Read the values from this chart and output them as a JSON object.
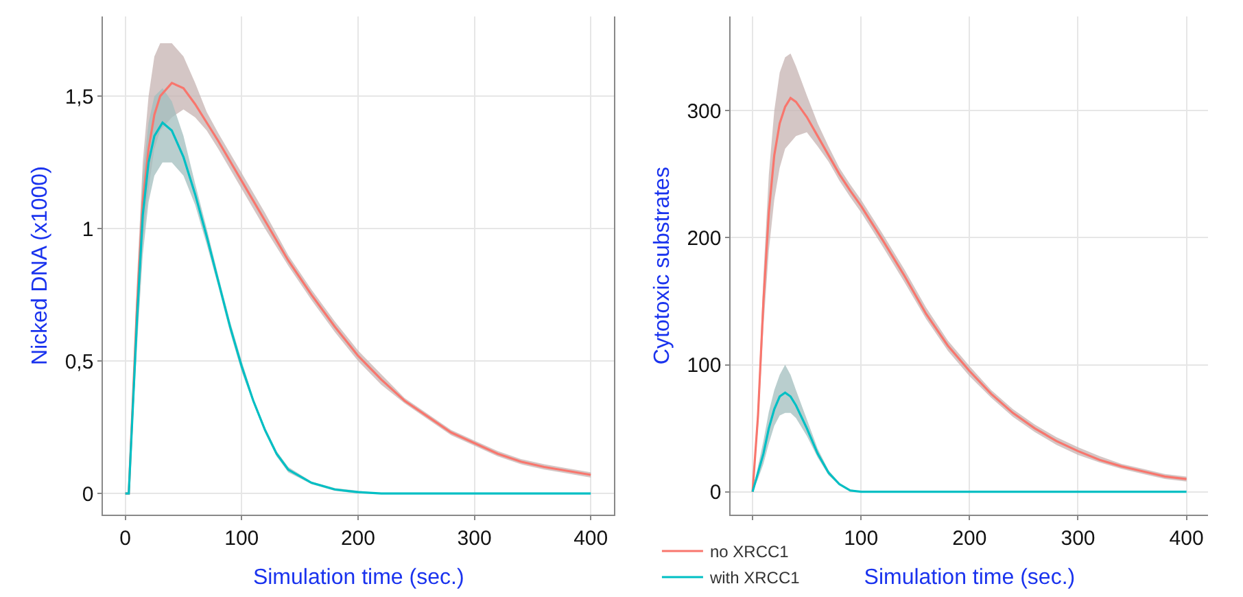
{
  "chart_data": [
    {
      "type": "line",
      "xlabel": "Simulation time (sec.)",
      "ylabel": "Nicked DNA (x1000)",
      "xlim": [
        -19,
        420
      ],
      "ylim": [
        -0.08,
        1.8
      ],
      "xticks": [
        0,
        100,
        200,
        300,
        400
      ],
      "yticks": [
        0,
        {
          "value": 0.5,
          "label": "0,5"
        },
        1,
        {
          "value": 1.5,
          "label": "1,5"
        }
      ],
      "grid": true,
      "legend": false,
      "series": [
        {
          "color": "#f8766d",
          "x": [
            0,
            3,
            10,
            15,
            20,
            25,
            30,
            40,
            50,
            60,
            70,
            80,
            100,
            120,
            140,
            160,
            180,
            200,
            220,
            240,
            260,
            280,
            300,
            320,
            340,
            360,
            380,
            400
          ],
          "values": [
            0,
            0,
            0.7,
            1.1,
            1.3,
            1.43,
            1.5,
            1.55,
            1.53,
            1.47,
            1.4,
            1.33,
            1.18,
            1.03,
            0.88,
            0.75,
            0.63,
            0.52,
            0.43,
            0.35,
            0.29,
            0.23,
            0.19,
            0.15,
            0.12,
            0.1,
            0.085,
            0.07
          ],
          "lower": [
            0,
            0,
            0.6,
            0.95,
            1.15,
            1.3,
            1.37,
            1.42,
            1.45,
            1.42,
            1.37,
            1.3,
            1.15,
            1.0,
            0.86,
            0.73,
            0.61,
            0.5,
            0.41,
            0.34,
            0.28,
            0.22,
            0.18,
            0.14,
            0.11,
            0.09,
            0.075,
            0.06
          ],
          "upper": [
            0,
            0,
            0.8,
            1.25,
            1.5,
            1.65,
            1.7,
            1.7,
            1.65,
            1.55,
            1.44,
            1.36,
            1.21,
            1.06,
            0.9,
            0.77,
            0.65,
            0.54,
            0.45,
            0.36,
            0.3,
            0.24,
            0.2,
            0.16,
            0.13,
            0.11,
            0.095,
            0.08
          ]
        },
        {
          "color": "#00bfc4",
          "x": [
            0,
            3,
            10,
            15,
            20,
            25,
            32,
            40,
            50,
            60,
            70,
            80,
            90,
            100,
            110,
            120,
            130,
            140,
            160,
            180,
            200,
            220,
            300,
            400
          ],
          "values": [
            0,
            0,
            0.65,
            1.05,
            1.25,
            1.35,
            1.4,
            1.37,
            1.27,
            1.13,
            0.97,
            0.8,
            0.63,
            0.48,
            0.35,
            0.24,
            0.15,
            0.09,
            0.04,
            0.015,
            0.005,
            0,
            0,
            0
          ],
          "lower": [
            0,
            0,
            0.55,
            0.9,
            1.1,
            1.2,
            1.25,
            1.25,
            1.2,
            1.09,
            0.94,
            0.78,
            0.61,
            0.46,
            0.34,
            0.23,
            0.14,
            0.08,
            0.035,
            0.01,
            0,
            0,
            0,
            0
          ],
          "upper": [
            0,
            0,
            0.75,
            1.2,
            1.4,
            1.5,
            1.53,
            1.48,
            1.35,
            1.17,
            1.0,
            0.82,
            0.65,
            0.5,
            0.36,
            0.25,
            0.16,
            0.1,
            0.045,
            0.02,
            0.01,
            0,
            0,
            0
          ]
        }
      ]
    },
    {
      "type": "line",
      "xlabel": "Simulation time (sec.)",
      "ylabel": "Cytotoxic substrates",
      "xlim": [
        -20,
        420
      ],
      "ylim": [
        -18,
        374
      ],
      "xticks": [
        {
          "value": 0,
          "label": null
        },
        100,
        200,
        300,
        400
      ],
      "yticks": [
        0,
        100,
        200,
        300
      ],
      "grid": true,
      "legend": "bottom left",
      "series": [
        {
          "name": "no XRCC1",
          "color": "#f8766d",
          "x": [
            0,
            5,
            10,
            15,
            20,
            25,
            30,
            35,
            40,
            50,
            60,
            70,
            80,
            90,
            100,
            120,
            140,
            160,
            180,
            200,
            220,
            240,
            260,
            280,
            300,
            320,
            340,
            360,
            380,
            400
          ],
          "values": [
            0,
            60,
            150,
            220,
            265,
            290,
            303,
            310,
            307,
            295,
            280,
            265,
            250,
            237,
            225,
            198,
            170,
            140,
            115,
            95,
            77,
            62,
            50,
            40,
            32,
            25,
            20,
            16,
            12,
            10
          ],
          "lower": [
            0,
            50,
            130,
            190,
            230,
            255,
            270,
            275,
            280,
            283,
            272,
            260,
            245,
            232,
            220,
            193,
            165,
            136,
            111,
            91,
            74,
            59,
            47,
            37,
            29,
            23,
            18,
            14,
            10,
            8
          ],
          "upper": [
            0,
            70,
            170,
            250,
            300,
            330,
            342,
            345,
            335,
            312,
            290,
            272,
            255,
            242,
            230,
            203,
            175,
            145,
            119,
            99,
            80,
            65,
            53,
            43,
            35,
            28,
            22,
            18,
            14,
            12
          ]
        },
        {
          "name": "with XRCC1",
          "color": "#00bfc4",
          "x": [
            0,
            5,
            10,
            15,
            20,
            25,
            30,
            35,
            40,
            50,
            60,
            70,
            80,
            90,
            100,
            400
          ],
          "values": [
            0,
            15,
            30,
            50,
            65,
            75,
            78,
            75,
            68,
            50,
            30,
            15,
            6,
            1,
            0,
            0
          ],
          "lower": [
            0,
            10,
            22,
            38,
            52,
            60,
            62,
            62,
            58,
            44,
            27,
            13,
            5,
            0,
            0,
            0
          ],
          "upper": [
            0,
            20,
            40,
            63,
            80,
            92,
            100,
            92,
            80,
            57,
            34,
            17,
            7,
            2,
            0,
            0
          ]
        }
      ]
    }
  ]
}
